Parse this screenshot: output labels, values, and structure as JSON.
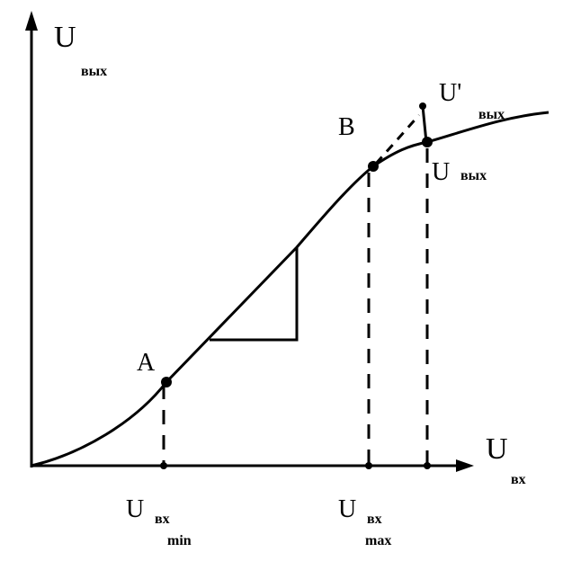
{
  "axes": {
    "y_label": "U",
    "y_label_sub": "вых",
    "x_label": "U",
    "x_label_sub": "вх"
  },
  "points": {
    "a": "A",
    "b": "B"
  },
  "x_marks": [
    {
      "label": "U",
      "sub": "вх",
      "sub2": "min"
    },
    {
      "label": "U",
      "sub": "вх",
      "sub2": "max"
    }
  ],
  "right_labels": [
    {
      "label": "U'",
      "sub": "вых"
    },
    {
      "label": "U",
      "sub": "вых"
    }
  ]
}
